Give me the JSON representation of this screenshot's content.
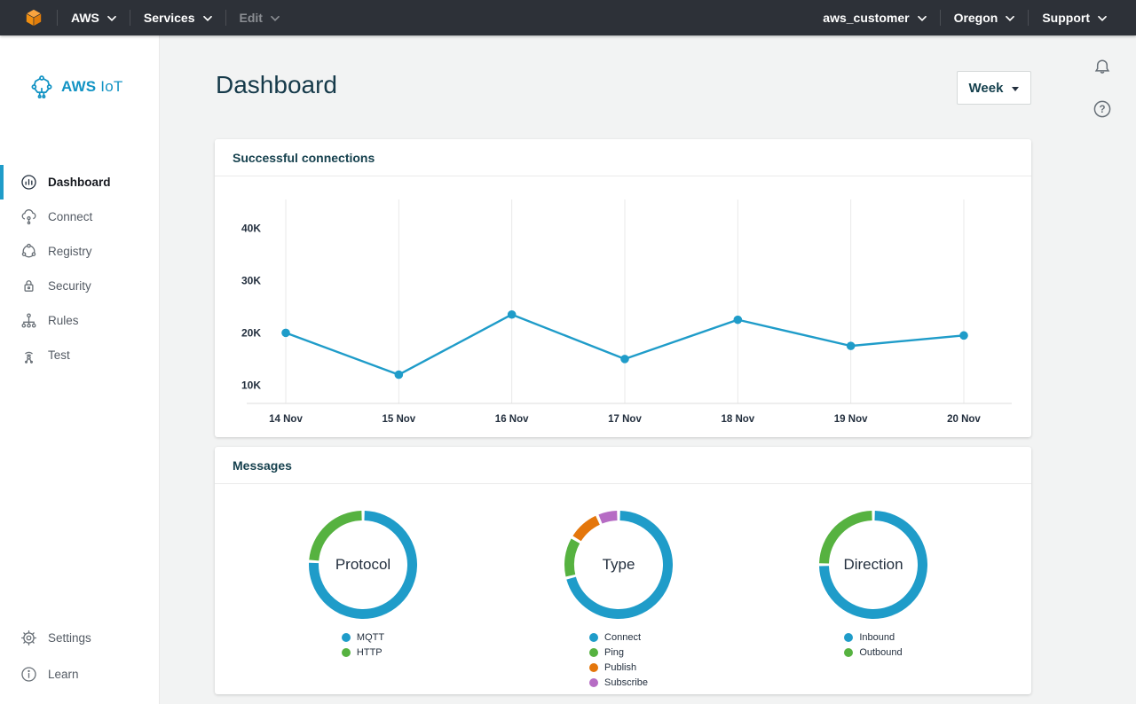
{
  "topbar": {
    "left_menus": [
      {
        "label": "AWS",
        "disabled": false
      },
      {
        "label": "Services",
        "disabled": false
      },
      {
        "label": "Edit",
        "disabled": true
      }
    ],
    "right_menus": [
      {
        "label": "aws_customer"
      },
      {
        "label": "Oregon"
      },
      {
        "label": "Support"
      }
    ]
  },
  "sidebar": {
    "logo": {
      "bold": "AWS",
      "regular": "IoT"
    },
    "items": [
      {
        "label": "Dashboard",
        "icon": "dashboard-icon",
        "active": true
      },
      {
        "label": "Connect",
        "icon": "connect-icon",
        "active": false
      },
      {
        "label": "Registry",
        "icon": "registry-icon",
        "active": false
      },
      {
        "label": "Security",
        "icon": "security-icon",
        "active": false
      },
      {
        "label": "Rules",
        "icon": "rules-icon",
        "active": false
      },
      {
        "label": "Test",
        "icon": "test-icon",
        "active": false
      }
    ],
    "bottom_items": [
      {
        "label": "Settings",
        "icon": "settings-icon"
      },
      {
        "label": "Learn",
        "icon": "learn-icon"
      }
    ]
  },
  "page": {
    "title": "Dashboard",
    "period_button": "Week"
  },
  "chart_data": [
    {
      "type": "line",
      "title": "Successful connections",
      "x": [
        "14 Nov",
        "15 Nov",
        "16 Nov",
        "17 Nov",
        "18 Nov",
        "19 Nov",
        "20 Nov"
      ],
      "series": [
        {
          "name": "Successful connections",
          "values": [
            20000,
            12000,
            23500,
            15000,
            22500,
            17500,
            19500
          ]
        }
      ],
      "yticks": [
        10000,
        20000,
        30000,
        40000
      ],
      "ytick_labels": [
        "10K",
        "20K",
        "30K",
        "40K"
      ],
      "ylim": [
        6500,
        45500
      ],
      "grid": "vertical",
      "legend_position": "none",
      "line_color": "#1f9cc9"
    },
    {
      "type": "pie",
      "title": "Messages",
      "donuts": [
        {
          "label": "Protocol",
          "slices": [
            {
              "name": "MQTT",
              "pct": 76,
              "color": "#1f9cc9"
            },
            {
              "name": "HTTP",
              "pct": 24,
              "color": "#56b240"
            }
          ],
          "legend_position": "bottom"
        },
        {
          "label": "Type",
          "slices": [
            {
              "name": "Connect",
              "pct": 71,
              "color": "#1f9cc9"
            },
            {
              "name": "Ping",
              "pct": 12.5,
              "color": "#56b240"
            },
            {
              "name": "Publish",
              "pct": 10,
              "color": "#e4760b"
            },
            {
              "name": "Subscribe",
              "pct": 6.5,
              "color": "#b66cc4"
            }
          ],
          "legend_position": "bottom"
        },
        {
          "label": "Direction",
          "slices": [
            {
              "name": "Inbound",
              "pct": 75,
              "color": "#1f9cc9"
            },
            {
              "name": "Outbound",
              "pct": 25,
              "color": "#56b240"
            }
          ],
          "legend_position": "bottom"
        }
      ]
    }
  ],
  "colors": {
    "accent_blue": "#1f9cc9",
    "green": "#56b240",
    "orange": "#e4760b",
    "purple": "#b66cc4",
    "topbar_bg": "#2d3138",
    "aws_cube_orange": "#f49819",
    "content_bg": "#f2f3f3",
    "heading_text": "#16414e"
  }
}
